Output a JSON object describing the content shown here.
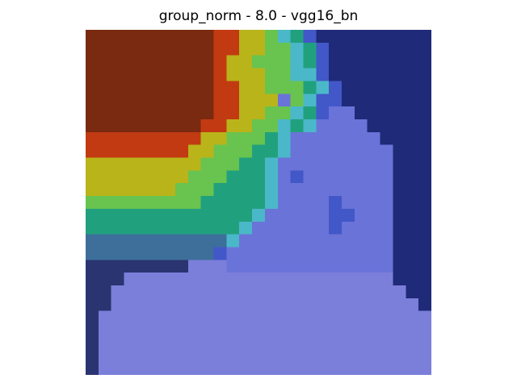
{
  "figure": {
    "title": "group_norm - 8.0 - vgg16_bn"
  },
  "heatmap": {
    "rows": [
      "RRRRRRRRRROOYYGCTBNNNNNNNNN",
      "RRRRRRRRRROOYYGGCTBNNNNNNNN",
      "RRRRRRRRRROYYGGGCTBNNNNNNNN",
      "RRRRRRRRRROYYYGGCCBNNNNNNNN",
      "RRRRRRRRRROOYYGGGTCBNNNNNNN",
      "RRRRRRRRRROOYYYLGCBBNNNNNNN",
      "RRRRRRRRRROOYYGGCTBLLNNNNNN",
      "RRRRRRRRROOYYGGCTCLLLLNNNNN",
      "OOOOOOOOOYYGGGTCLLLLLLLNNNN",
      "OOOOOOOOYYGGGTTCLLLLLLLLNNN",
      "YYYYYYYYYGGGTTCLLLLLLLLLNNN",
      "YYYYYYYYGGGTTTCLBLLLLLLLNNN",
      "YYYYYYYGGGTTTTCLLLLLLLLLNNN",
      "GGGGGGGGGTTTTTCLLLLBLLLLNNN",
      "TTTTTTTTTTTTTCLLLLLBBLLLNNN",
      "TTTTTTTTTTTTCLLLLLLBLLLLNNN",
      "SSSSSSSSSSSCLLLLLLLLLLLLNNN",
      "SSSSSSSSSSBLLLLLLLLLLLLLNNN",
      "DDDDDDDDPPPLLLLLLLLLLLLLNNN",
      "DDDPPPPPPPPPPPPPPPPPPPPPNNN",
      "DDPPPPPPPPPPPPPPPPPPPPPPPNN",
      "DDPPPPPPPPPPPPPPPPPPPPPPPPN",
      "DPPPPPPPPPPPPPPPPPPPPPPPPPP",
      "DPPPPPPPPPPPPPPPPPPPPPPPPPP",
      "DPPPPPPPPPPPPPPPPPPPPPPPPPP",
      "DPPPPPPPPPPPPPPPPPPPPPPPPPP",
      "DPPPPPPPPPPPPPPPPPPPPPPPPPP"
    ],
    "palette": {
      "R": "#7a2a10",
      "O": "#c23a12",
      "Y": "#b9b41a",
      "G": "#69c34f",
      "T": "#21a07e",
      "C": "#4ab8c8",
      "S": "#3d6f9a",
      "B": "#4257c8",
      "L": "#6a73d8",
      "N": "#1f2a78",
      "P": "#7b7fda",
      "D": "#2a3470"
    }
  }
}
